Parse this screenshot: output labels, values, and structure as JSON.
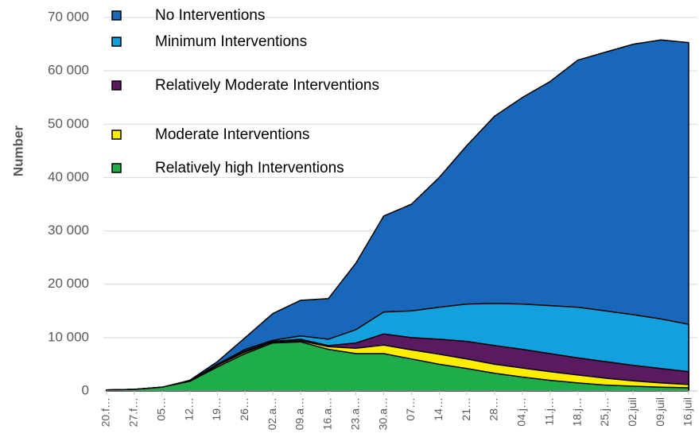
{
  "chart_data": {
    "type": "area",
    "ylabel": "Number",
    "categories": [
      "20.f…",
      "27.f…",
      "05…",
      "12…",
      "19…",
      "26…",
      "02.a…",
      "09.a…",
      "16.a…",
      "23.a…",
      "30.a…",
      "07…",
      "14…",
      "21…",
      "28…",
      "04.j…",
      "11.j…",
      "18.j…",
      "25.j…",
      "02.juil",
      "09.juil",
      "16.juil"
    ],
    "series": [
      {
        "name": "No Interventions",
        "color": "#1867b9",
        "values": [
          200,
          300,
          700,
          2000,
          5500,
          10000,
          14500,
          17000,
          17300,
          24000,
          32800,
          35000,
          40000,
          46000,
          51500,
          55000,
          58000,
          62000,
          63500,
          65000,
          65800,
          65300
        ]
      },
      {
        "name": "Minimum Interventions",
        "color": "#14a0dc",
        "values": [
          200,
          300,
          700,
          1800,
          5000,
          7800,
          9500,
          10300,
          9700,
          11500,
          14800,
          15000,
          15700,
          16300,
          16400,
          16300,
          16000,
          15700,
          15000,
          14300,
          13500,
          12500
        ]
      },
      {
        "name": "Relatively Moderate Interventions",
        "color": "#5b1a5f",
        "values": [
          200,
          300,
          700,
          1800,
          5000,
          7500,
          9300,
          9700,
          8500,
          9000,
          10700,
          10000,
          9700,
          9300,
          8500,
          7800,
          7000,
          6200,
          5500,
          4800,
          4200,
          3600
        ]
      },
      {
        "name": "Moderate Interventions",
        "color": "#ffed00",
        "values": [
          200,
          300,
          700,
          1800,
          4800,
          7300,
          9200,
          9400,
          8300,
          8000,
          8600,
          7700,
          6900,
          6000,
          5000,
          4300,
          3600,
          3000,
          2400,
          1900,
          1500,
          1200
        ]
      },
      {
        "name": "Relatively high Interventions",
        "color": "#1fad4b",
        "values": [
          200,
          300,
          700,
          1800,
          4500,
          7000,
          9000,
          9200,
          7800,
          7000,
          7000,
          6000,
          5000,
          4200,
          3300,
          2600,
          2000,
          1500,
          1100,
          900,
          700,
          600
        ]
      }
    ],
    "ylim": [
      0,
      70000
    ],
    "yticks": [
      0,
      {
        "value": 10000,
        "label": "10 000"
      },
      {
        "value": 20000,
        "label": "20 000"
      },
      {
        "value": 30000,
        "label": "30 000"
      },
      {
        "value": 40000,
        "label": "40 000"
      },
      {
        "value": 50000,
        "label": "50 000"
      },
      {
        "value": 60000,
        "label": "60 000"
      },
      {
        "value": 70000,
        "label": "70 000"
      }
    ],
    "grid": true,
    "legend": "top-left"
  }
}
